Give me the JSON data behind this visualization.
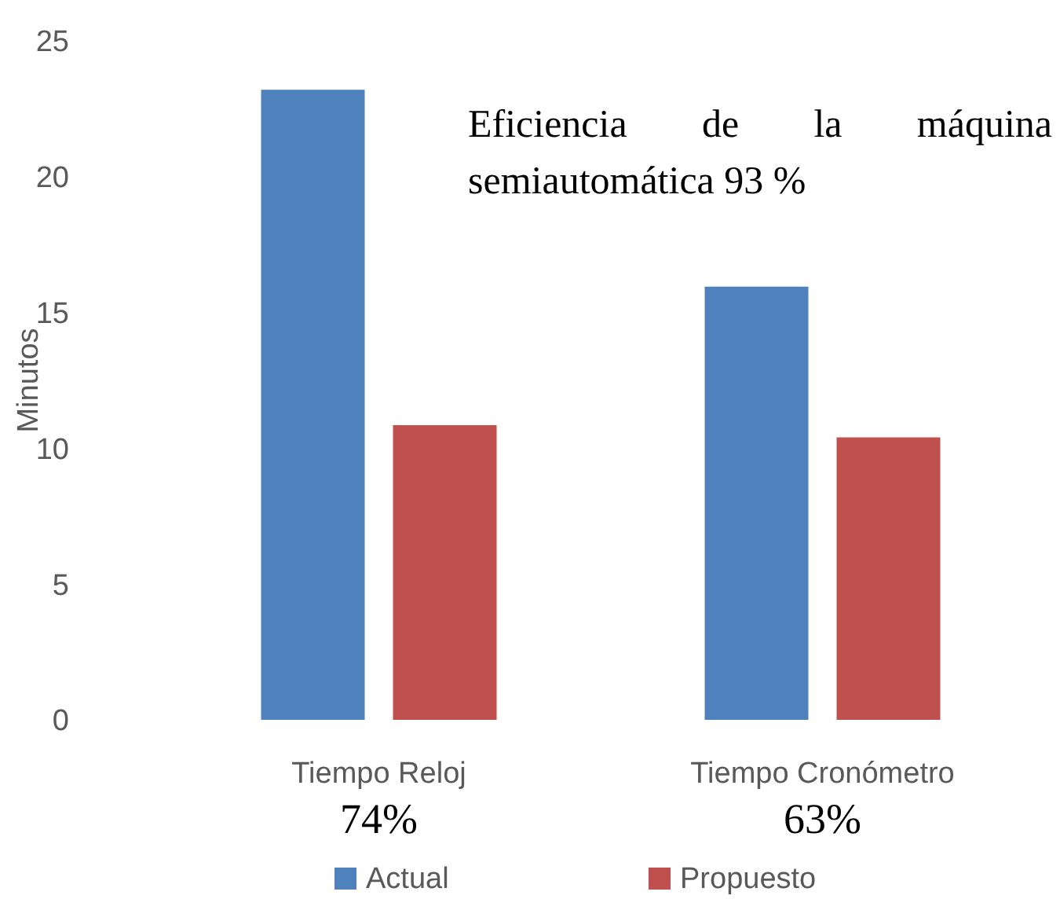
{
  "chart_data": {
    "type": "bar",
    "ylabel": "Minutos",
    "categories": [
      "Tiempo Reloj",
      "Tiempo Cronómetro"
    ],
    "series": [
      {
        "name": "Actual",
        "color": "#4f81bd",
        "values": [
          23.2,
          15.95
        ]
      },
      {
        "name": "Propuesto",
        "color": "#c0504d",
        "values": [
          10.85,
          10.4
        ]
      }
    ],
    "ylim": [
      0,
      25
    ],
    "yticks": [
      0,
      5,
      10,
      15,
      20,
      25
    ],
    "grid": false,
    "legend": "bottom",
    "annotations": [
      "Eficiencia de la máquina semiautomática 93 %",
      "74%",
      "63%"
    ]
  }
}
